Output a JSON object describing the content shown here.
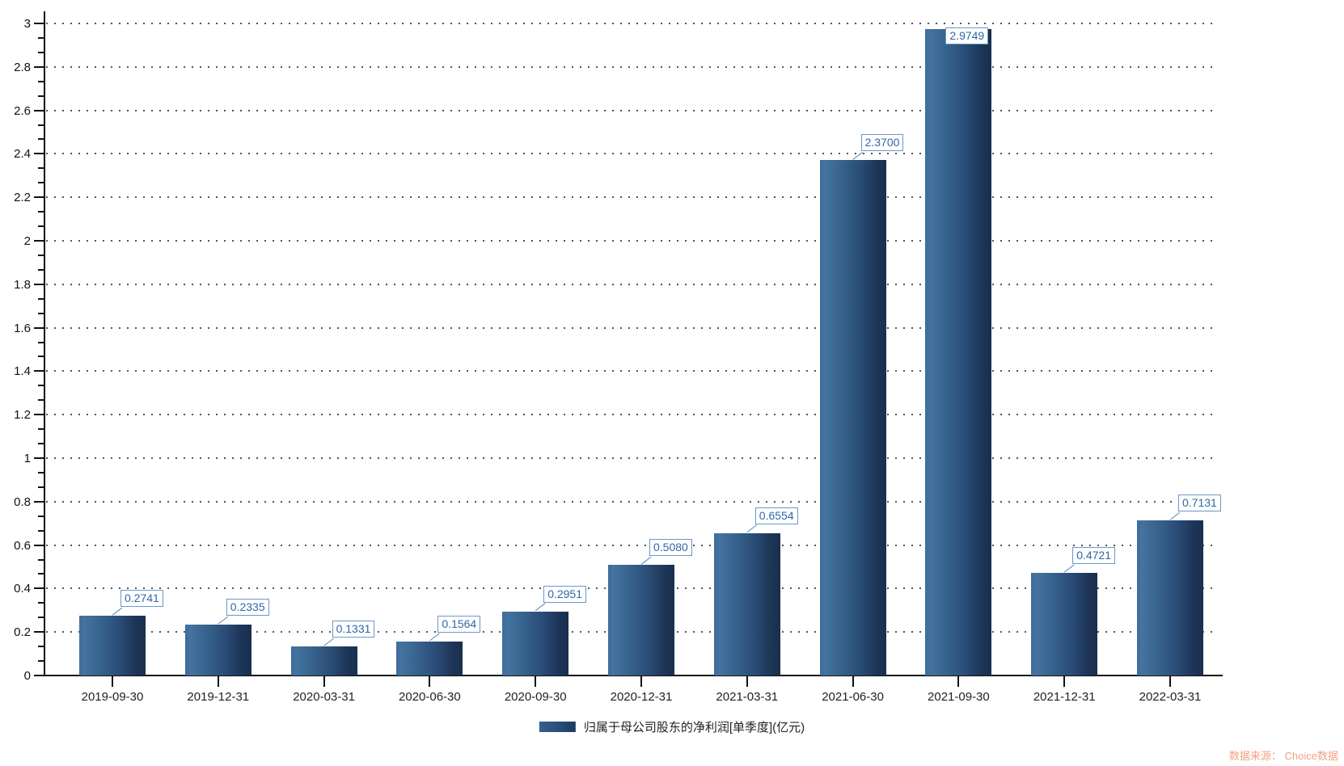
{
  "chart_data": {
    "type": "bar",
    "title": "",
    "xlabel": "",
    "ylabel": "",
    "categories": [
      "2019-09-30",
      "2019-12-31",
      "2020-03-31",
      "2020-06-30",
      "2020-09-30",
      "2020-12-31",
      "2021-03-31",
      "2021-06-30",
      "2021-09-30",
      "2021-12-31",
      "2022-03-31"
    ],
    "values": [
      0.2741,
      0.2335,
      0.1331,
      0.1564,
      0.2951,
      0.508,
      0.6554,
      2.37,
      2.9749,
      0.4721,
      0.7131
    ],
    "value_labels": [
      "0.2741",
      "0.2335",
      "0.1331",
      "0.1564",
      "0.2951",
      "0.5080",
      "0.6554",
      "2.3700",
      "2.9749",
      "0.4721",
      "0.7131"
    ],
    "series_name": "归属于母公司股东的净利润[单季度](亿元)",
    "ylim": [
      0,
      3
    ],
    "y_tick_interval": 0.2,
    "y_minor_ticks_per_interval": 2,
    "y_tick_labels": [
      "0",
      "0.2",
      "0.4",
      "0.6",
      "0.8",
      "1",
      "1.2",
      "1.4",
      "1.6",
      "1.8",
      "2",
      "2.2",
      "2.4",
      "2.6",
      "2.8",
      "3"
    ],
    "grid": "horizontal-dotted",
    "legend_position": "bottom-center",
    "colors": {
      "bar_gradient_left": "#3e6c9e",
      "bar_gradient_right": "#192f4e",
      "callout_border": "#6b97c8",
      "callout_text": "#3166a6",
      "axis": "#111111",
      "tick_label": "#222222",
      "gridline": "#555555",
      "watermark": "#f2a183"
    }
  },
  "legend": {
    "label": "归属于母公司股东的净利润[单季度](亿元)"
  },
  "watermark": {
    "text": "数据来源： Choice数据"
  }
}
